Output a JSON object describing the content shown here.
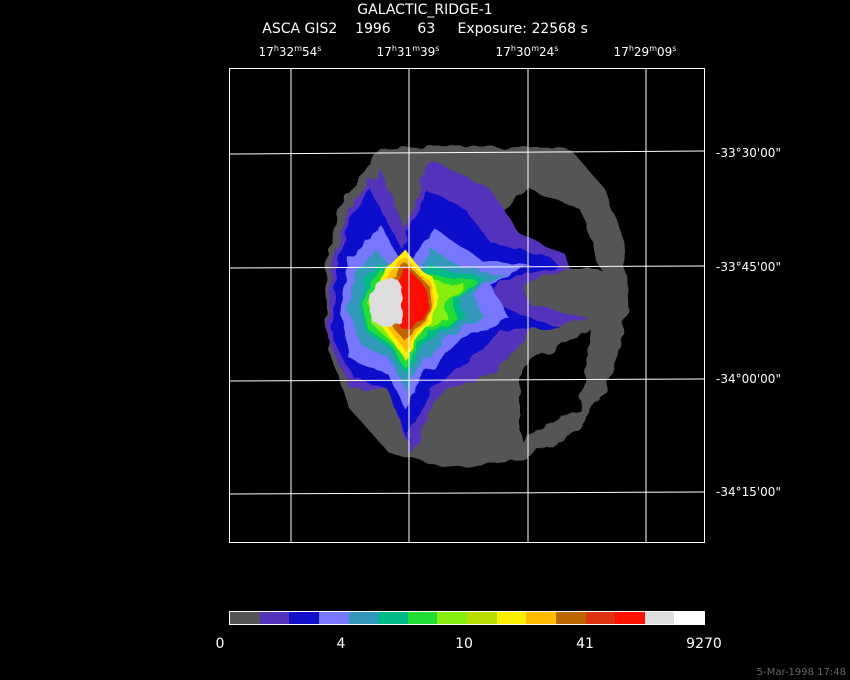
{
  "header": {
    "title": "GALACTIC_RIDGE-1",
    "info": "ASCA GIS2    1996      63     Exposure: 22568 s"
  },
  "ra_labels": [
    {
      "h": "17",
      "m": "32",
      "s": "54"
    },
    {
      "h": "17",
      "m": "31",
      "s": "39"
    },
    {
      "h": "17",
      "m": "30",
      "s": "24"
    },
    {
      "h": "17",
      "m": "29",
      "s": "09"
    }
  ],
  "dec_labels": [
    "-33°30'00\"",
    "-33°45'00\"",
    "-34°00'00\"",
    "-34°15'00\""
  ],
  "colorbar": {
    "colors": [
      "#555555",
      "#5533bb",
      "#1111cc",
      "#7777ff",
      "#3399bb",
      "#00bb88",
      "#22dd33",
      "#88ee11",
      "#bbdd00",
      "#ffee00",
      "#ffbb00",
      "#bb6600",
      "#dd3311",
      "#ff1100",
      "#dddddd",
      "#ffffff"
    ],
    "labels": [
      "0",
      "4",
      "10",
      "41",
      "9270"
    ]
  },
  "timestamp": "5-Mar-1998 17:48"
}
